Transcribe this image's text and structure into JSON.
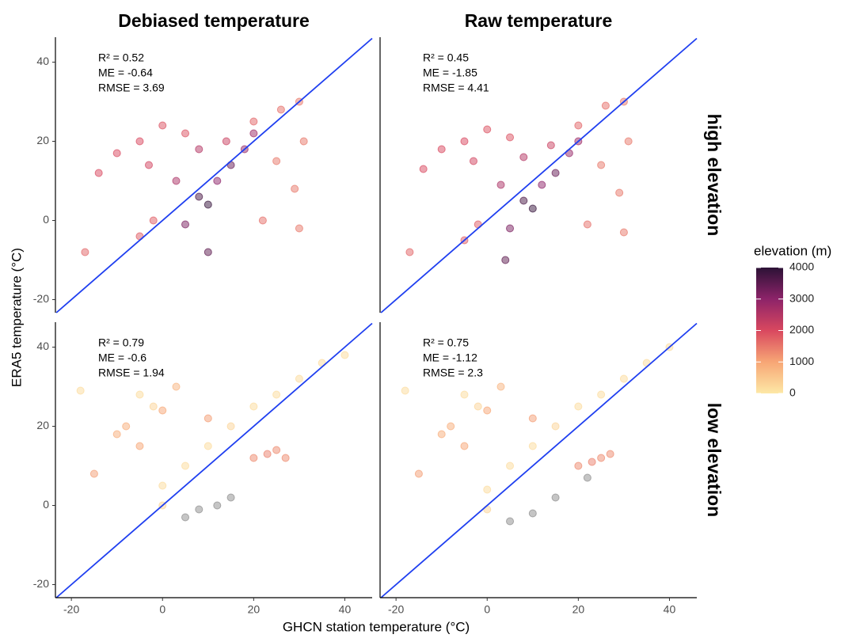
{
  "chart_data": {
    "type": "scatter",
    "x_label": "GHCN station temperature (°C)",
    "y_label": "ERA5 temperature (°C)",
    "col_titles": [
      "Debiased temperature",
      "Raw temperature"
    ],
    "row_labels": [
      "high elevation",
      "low elevation"
    ],
    "xlim": [
      -23.5,
      46
    ],
    "ylim": [
      -23.3,
      46.3
    ],
    "xticks": [
      -20,
      0,
      20,
      40
    ],
    "yticks": [
      -20,
      0,
      20,
      40
    ],
    "line_color": "#1f3ff0",
    "colorbar": {
      "title": "elevation (m)",
      "lim": [
        0,
        4000
      ],
      "ticks": [
        0,
        1000,
        2000,
        3000,
        4000
      ],
      "colors": [
        "#fde8a6",
        "#f7a675",
        "#d9485f",
        "#8d2369",
        "#2c1236"
      ],
      "na_color": "#8c8c8c"
    },
    "panels": [
      {
        "stats": [
          "R² = 0.52",
          "ME = -0.64",
          "RMSE = 3.69"
        ],
        "x": [
          -14,
          -10,
          -5,
          -3,
          0,
          5,
          8,
          14,
          20,
          26,
          30,
          31,
          29,
          30,
          22,
          25,
          12,
          15,
          8,
          10,
          5,
          18,
          -2,
          -17,
          -5,
          10,
          3,
          20
        ],
        "values": [
          12,
          17,
          20,
          14,
          24,
          22,
          18,
          20,
          25,
          28,
          30,
          20,
          8,
          -2,
          0,
          15,
          10,
          14,
          6,
          4,
          -1,
          18,
          0,
          -8,
          -4,
          -8,
          10,
          22
        ],
        "elevation": [
          2000,
          2000,
          2000,
          2100,
          1900,
          1900,
          2500,
          2200,
          1700,
          1600,
          1500,
          1500,
          1500,
          1500,
          1600,
          1500,
          3000,
          3400,
          3700,
          3900,
          3200,
          2900,
          1800,
          1700,
          1800,
          3500,
          2600,
          2800
        ]
      },
      {
        "stats": [
          "R² = 0.45",
          "ME = -1.85",
          "RMSE = 4.41"
        ],
        "x": [
          -14,
          -10,
          -5,
          -3,
          0,
          5,
          8,
          14,
          20,
          26,
          30,
          31,
          29,
          30,
          22,
          25,
          12,
          15,
          8,
          10,
          5,
          18,
          -2,
          -17,
          -5,
          4,
          3,
          20
        ],
        "values": [
          13,
          18,
          20,
          15,
          23,
          21,
          16,
          19,
          24,
          29,
          30,
          20,
          7,
          -3,
          -1,
          14,
          9,
          12,
          5,
          3,
          -2,
          17,
          -1,
          -8,
          -5,
          -10,
          9,
          20
        ],
        "elevation": [
          2000,
          2000,
          2000,
          2100,
          1900,
          1900,
          2500,
          2200,
          1700,
          1600,
          1500,
          1500,
          1500,
          1500,
          1600,
          1500,
          3000,
          3400,
          3700,
          3900,
          3200,
          2900,
          1800,
          1700,
          1800,
          3500,
          2600,
          2800
        ]
      },
      {
        "stats": [
          "R² = 0.79",
          "ME = -0.6",
          "RMSE = 1.94"
        ],
        "x": [
          -18,
          -8,
          -5,
          -2,
          0,
          5,
          10,
          15,
          20,
          25,
          30,
          35,
          40,
          -10,
          -5,
          0,
          3,
          10,
          20,
          23,
          25,
          27,
          5,
          8,
          12,
          15,
          0,
          -15
        ],
        "values": [
          29,
          20,
          28,
          25,
          5,
          10,
          15,
          20,
          25,
          28,
          32,
          36,
          38,
          18,
          15,
          24,
          30,
          22,
          12,
          13,
          14,
          12,
          -3,
          -1,
          0,
          2,
          0,
          8
        ],
        "elevation": [
          200,
          900,
          200,
          300,
          200,
          200,
          200,
          300,
          200,
          200,
          200,
          200,
          200,
          900,
          1000,
          1000,
          800,
          1100,
          1300,
          1400,
          1300,
          1300,
          null,
          null,
          null,
          null,
          300,
          1100
        ]
      },
      {
        "stats": [
          "R² = 0.75",
          "ME = -1.12",
          "RMSE = 2.3"
        ],
        "x": [
          -18,
          -8,
          -5,
          -2,
          0,
          5,
          10,
          15,
          20,
          25,
          30,
          35,
          40,
          -10,
          -5,
          0,
          3,
          10,
          20,
          23,
          25,
          27,
          5,
          10,
          15,
          22,
          0,
          -15
        ],
        "values": [
          29,
          20,
          28,
          25,
          4,
          10,
          15,
          20,
          25,
          28,
          32,
          36,
          40,
          18,
          15,
          24,
          30,
          22,
          10,
          11,
          12,
          13,
          -4,
          -2,
          2,
          7,
          -1,
          8
        ],
        "elevation": [
          200,
          900,
          200,
          300,
          200,
          200,
          200,
          300,
          200,
          200,
          200,
          200,
          200,
          900,
          1000,
          1000,
          800,
          1100,
          1300,
          1400,
          1300,
          1300,
          null,
          null,
          null,
          null,
          300,
          1100
        ]
      }
    ]
  }
}
